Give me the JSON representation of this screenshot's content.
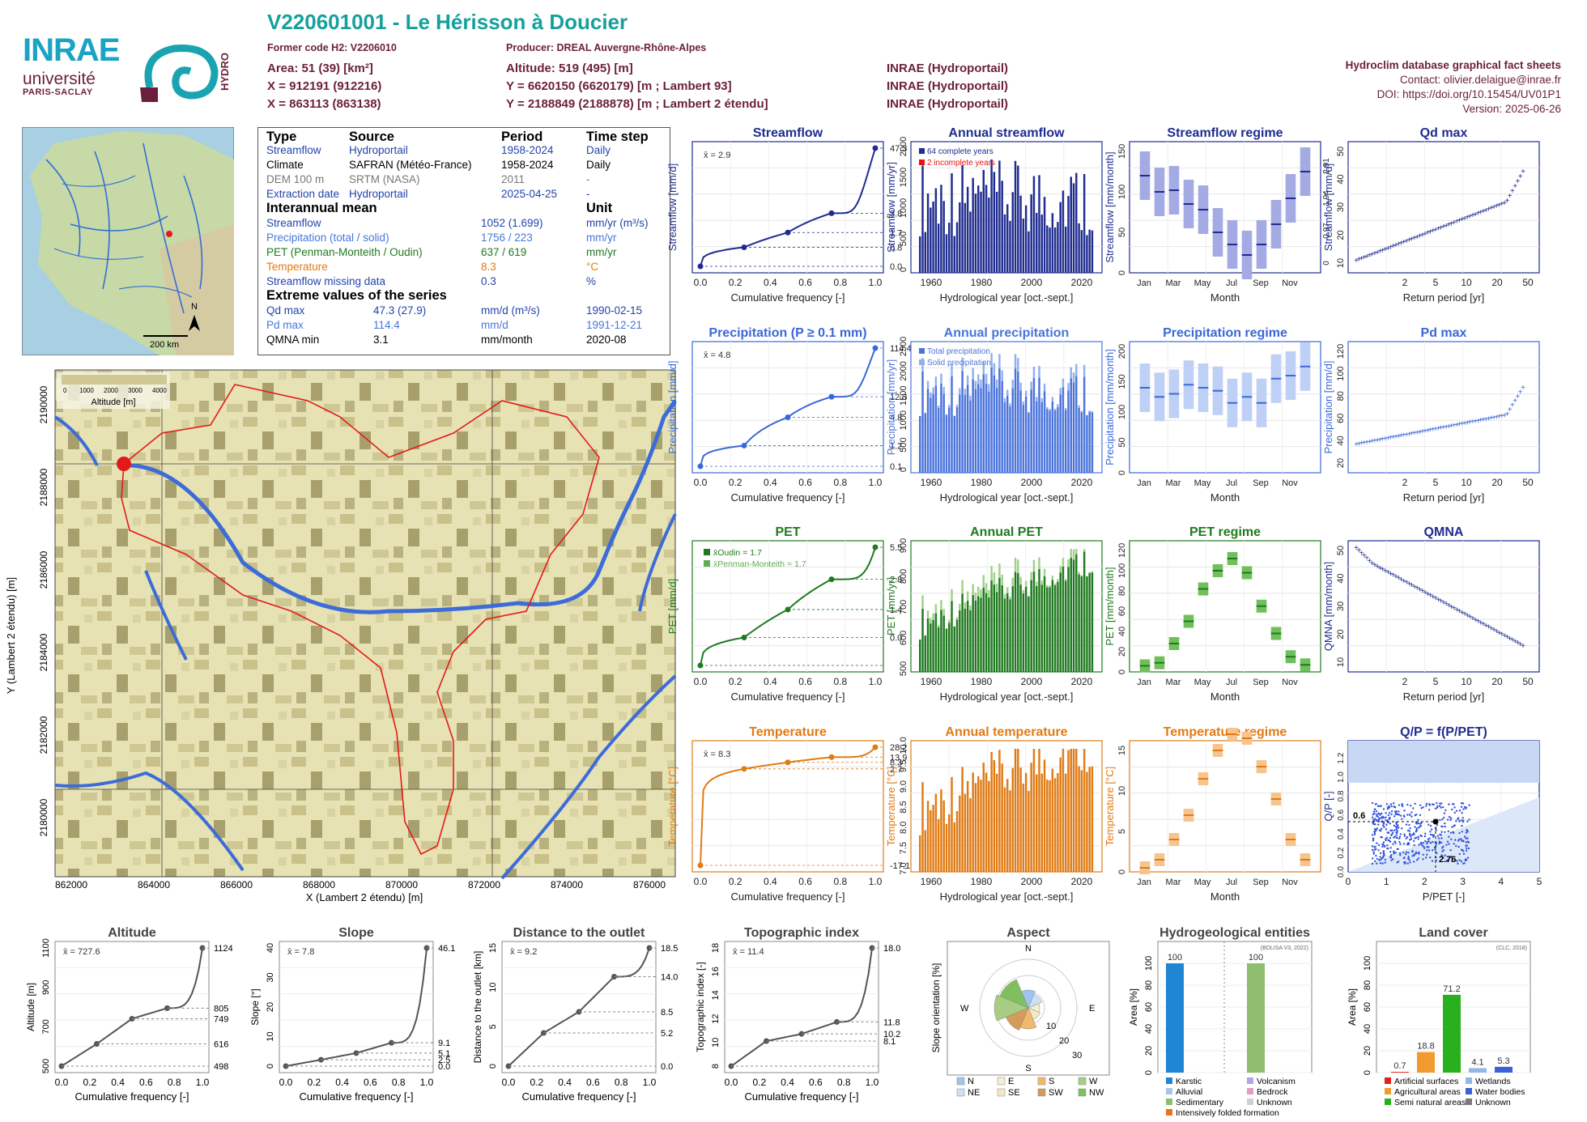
{
  "header": {
    "title": "V220601001 - Le Hérisson à Doucier",
    "former_code": "Former code H2: V2206010",
    "producer": "Producer: DREAL Auvergne-Rhône-Alpes",
    "area": "Area: 51 (39) [km²]",
    "altitude": "Altitude: 519 (495) [m]",
    "x93": "X = 912191 (912216)",
    "y93": "Y = 6620150 (6620179) [m ; Lambert 93]",
    "x2e": "X = 863113 (863138)",
    "y2e": "Y = 2188849 (2188878) [m ; Lambert 2 étendu]",
    "source1": "INRAE (Hydroportail)",
    "source2": "INRAE (Hydroportail)",
    "source3": "INRAE (Hydroportail)",
    "right_title": "Hydroclim database graphical fact sheets",
    "contact": "Contact: olivier.delaigue@inrae.fr",
    "doi": "DOI: https://doi.org/10.15454/UV01P1",
    "version": "Version: 2025-06-26",
    "logo_inrae": "INRAE",
    "logo_univ": "université",
    "logo_ps": "PARIS-SACLAY",
    "logo_hydro": "HYDRO"
  },
  "info": {
    "cols": [
      "Type",
      "Source",
      "Period",
      "Time step"
    ],
    "rows": [
      {
        "type": "Streamflow",
        "source": "Hydroportail",
        "period": "1958-2024",
        "step": "Daily"
      },
      {
        "type": "Climate",
        "source": "SAFRAN (Météo-France)",
        "period": "1958-2024",
        "step": "Daily"
      },
      {
        "type": "DEM 100 m",
        "source": "SRTM (NASA)",
        "period": "2011",
        "step": "-"
      },
      {
        "type": "Extraction date",
        "source": "Hydroportail",
        "period": "2025-04-25",
        "step": "-"
      }
    ],
    "mean_title": "Interannual mean",
    "unit_title": "Unit",
    "means": [
      {
        "label": "Streamflow",
        "value": "1052 (1.699)",
        "unit": "mm/yr (m³/s)"
      },
      {
        "label": "Precipitation (total / solid)",
        "value": "1756 / 223",
        "unit": "mm/yr"
      },
      {
        "label": "PET (Penman-Monteith / Oudin)",
        "value": "637 / 619",
        "unit": "mm/yr"
      },
      {
        "label": "Temperature",
        "value": "8.3",
        "unit": "°C"
      },
      {
        "label": "Streamflow missing data",
        "value": "0.3",
        "unit": "%"
      }
    ],
    "ext_title": "Extreme values of the series",
    "extremes": [
      {
        "label": "Qd max",
        "value": "47.3 (27.9)",
        "unit": "mm/d (m³/s)",
        "date": "1990-02-15"
      },
      {
        "label": "Pd max",
        "value": "114.4",
        "unit": "mm/d",
        "date": "1991-12-21"
      },
      {
        "label": "QMNA min",
        "value": "3.1",
        "unit": "mm/month",
        "date": "2020-08"
      }
    ]
  },
  "map_small": {
    "scale": "200 km",
    "north": "N"
  },
  "map_main": {
    "xlabel": "X (Lambert 2 étendu) [m]",
    "ylabel": "Y (Lambert 2 étendu) [m]",
    "xticks": [
      "862000",
      "864000",
      "866000",
      "868000",
      "870000",
      "872000",
      "874000",
      "876000"
    ],
    "yticks": [
      "2180000",
      "2182000",
      "2184000",
      "2186000",
      "2188000",
      "2190000"
    ],
    "legend_title": "Altitude [m]",
    "legend_ticks": [
      "0",
      "1000",
      "2000",
      "3000",
      "4000"
    ]
  },
  "chart_data": [
    {
      "id": "streamflow_cdf",
      "type": "line",
      "title": "Streamflow",
      "xlabel": "Cumulative frequency [-]",
      "ylabel": "Streamflow [mm/d]",
      "mean_label": "x̄ = 2.9",
      "right_ticks": [
        "47.3",
        "3.8",
        "1.7",
        "0.8",
        "0.0"
      ],
      "x": [
        0,
        0.25,
        0.5,
        0.75,
        1.0
      ],
      "y": [
        0.0,
        0.8,
        1.7,
        3.8,
        47.3
      ]
    },
    {
      "id": "annual_streamflow",
      "type": "bar",
      "title": "Annual streamflow",
      "xlabel": "Hydrological year [oct.-sept.]",
      "ylabel": "Streamflow [mm/yr]",
      "legend": [
        "64 complete years",
        "2 incomplete years"
      ],
      "ylim": [
        0,
        2000
      ],
      "yticks": [
        "0",
        "500",
        "1000",
        "1500",
        "2000"
      ],
      "xticks": [
        "1960",
        "1980",
        "2000",
        "2020"
      ]
    },
    {
      "id": "streamflow_regime",
      "type": "bar",
      "title": "Streamflow regime",
      "xlabel": "Month",
      "ylabel": "Streamflow [mm/month]",
      "xticks": [
        "Jan",
        "Mar",
        "May",
        "Jul",
        "Sep",
        "Nov"
      ],
      "right_ticks": [
        "2.91",
        "1.94",
        "0.97",
        "0"
      ],
      "yticks": [
        "0",
        "50",
        "100",
        "150"
      ],
      "medians": [
        120,
        100,
        102,
        85,
        78,
        50,
        35,
        22,
        35,
        60,
        92,
        125
      ]
    },
    {
      "id": "qd_max",
      "type": "scatter",
      "title": "Qd max",
      "xlabel": "Return period [yr]",
      "ylabel": "Streamflow [mm/d]",
      "xticks": [
        "2",
        "5",
        "10",
        "20",
        "50"
      ],
      "yticks": [
        "10",
        "20",
        "30",
        "40",
        "50"
      ]
    },
    {
      "id": "precip_cdf",
      "type": "line",
      "title": "Precipitation (P ≥ 0.1 mm)",
      "xlabel": "Cumulative frequency [-]",
      "ylabel": "Precipitation [mm/d]",
      "mean_label": "x̄ = 4.8",
      "right_ticks": [
        "114.4",
        "12.3",
        "4.8",
        "1.2",
        "0.1"
      ],
      "x": [
        0,
        0.25,
        0.5,
        0.75,
        1.0
      ],
      "y": [
        0.1,
        1.2,
        4.8,
        12.3,
        114.4
      ]
    },
    {
      "id": "annual_precip",
      "type": "bar",
      "title": "Annual precipitation",
      "xlabel": "Hydrological year [oct.-sept.]",
      "ylabel": "Precipitation [mm/yr]",
      "legend": [
        "Total precipitation",
        "Solid precipitation"
      ],
      "ylim": [
        0,
        2500
      ],
      "yticks": [
        "0",
        "500",
        "1000",
        "1500",
        "2000",
        "2500"
      ],
      "xticks": [
        "1960",
        "1980",
        "2000",
        "2020"
      ]
    },
    {
      "id": "precip_regime",
      "type": "bar",
      "title": "Precipitation regime",
      "xlabel": "Month",
      "ylabel": "Precipitation [mm/month]",
      "xticks": [
        "Jan",
        "Mar",
        "May",
        "Jul",
        "Sep",
        "Nov"
      ],
      "yticks": [
        "0",
        "50",
        "100",
        "150",
        "200"
      ],
      "medians": [
        140,
        125,
        130,
        145,
        140,
        135,
        115,
        125,
        115,
        155,
        160,
        175
      ]
    },
    {
      "id": "pd_max",
      "type": "scatter",
      "title": "Pd max",
      "xlabel": "Return period [yr]",
      "ylabel": "Precipitation [mm/d]",
      "xticks": [
        "2",
        "5",
        "10",
        "20",
        "50"
      ],
      "yticks": [
        "20",
        "40",
        "60",
        "80",
        "100",
        "120"
      ]
    },
    {
      "id": "pet_cdf",
      "type": "line",
      "title": "PET",
      "xlabel": "Cumulative frequency [-]",
      "ylabel": "PET [mm/d]",
      "legend": [
        "x̄Oudin = 1.7",
        "x̄Penman-Monteith = 1.7"
      ],
      "right_ticks": [
        "5.5",
        "2.8",
        "1.4",
        "0.0"
      ],
      "x": [
        0,
        0.25,
        0.5,
        0.75,
        1.0
      ],
      "y": [
        0.0,
        0.6,
        1.4,
        2.8,
        5.5
      ]
    },
    {
      "id": "annual_pet",
      "type": "bar",
      "title": "Annual PET",
      "xlabel": "Hydrological year [oct.-sept.]",
      "ylabel": "PET [mm/yr]",
      "yticks": [
        "500",
        "600",
        "700",
        "800",
        "900"
      ],
      "xticks": [
        "1960",
        "1980",
        "2000",
        "2020"
      ]
    },
    {
      "id": "pet_regime",
      "type": "bar",
      "title": "PET regime",
      "xlabel": "Month",
      "ylabel": "PET [mm/month]",
      "xticks": [
        "Jan",
        "Mar",
        "May",
        "Jul",
        "Sep",
        "Nov"
      ],
      "yticks": [
        "0",
        "20",
        "40",
        "60",
        "80",
        "100",
        "120"
      ],
      "medians": [
        6,
        9,
        28,
        50,
        82,
        100,
        112,
        98,
        65,
        38,
        15,
        7
      ]
    },
    {
      "id": "qmna",
      "type": "scatter",
      "title": "QMNA",
      "xlabel": "Return period [yr]",
      "ylabel": "QMNA [mm/month]",
      "xticks": [
        "2",
        "5",
        "10",
        "20",
        "50"
      ],
      "yticks": [
        "10",
        "20",
        "30",
        "40",
        "50"
      ]
    },
    {
      "id": "temp_cdf",
      "type": "line",
      "title": "Temperature",
      "xlabel": "Cumulative frequency [-]",
      "ylabel": "Temperature [°C]",
      "mean_label": "x̄ = 8.3",
      "right_ticks": [
        "28.2",
        "13.9",
        "8.3",
        "2.7",
        "-17.1"
      ],
      "x": [
        0,
        0.25,
        0.5,
        0.75,
        1.0
      ],
      "y": [
        -17.1,
        2.7,
        8.3,
        13.9,
        28.2
      ]
    },
    {
      "id": "annual_temp",
      "type": "bar",
      "title": "Annual temperature",
      "xlabel": "Hydrological year [oct.-sept.]",
      "ylabel": "Temperature [°C]",
      "yticks": [
        "7.0",
        "7.5",
        "8.0",
        "8.5",
        "9.0",
        "9.5",
        "10.0"
      ],
      "xticks": [
        "1960",
        "1980",
        "2000",
        "2020"
      ]
    },
    {
      "id": "temp_regime",
      "type": "bar",
      "title": "Temperature regime",
      "xlabel": "Month",
      "ylabel": "Temperature [°C]",
      "xticks": [
        "Jan",
        "Mar",
        "May",
        "Jul",
        "Sep",
        "Nov"
      ],
      "yticks": [
        "0",
        "5",
        "10",
        "15"
      ],
      "medians": [
        0.5,
        1.5,
        4,
        7,
        11.5,
        15,
        17,
        16.5,
        13,
        9,
        4,
        1.5
      ]
    },
    {
      "id": "qp_ppet",
      "type": "scatter",
      "title": "Q/P = f(P/PET)",
      "xlabel": "P/PET [-]",
      "ylabel": "Q/P [-]",
      "xticks": [
        "0",
        "1",
        "2",
        "3",
        "4",
        "5"
      ],
      "yticks": [
        "0.0",
        "0.2",
        "0.4",
        "0.6",
        "0.8",
        "1.0",
        "1.2"
      ],
      "annotations": [
        "0.6",
        "2.76"
      ]
    },
    {
      "id": "altitude",
      "type": "line",
      "title": "Altitude",
      "xlabel": "Cumulative frequency [-]",
      "ylabel": "Altitude [m]",
      "mean_label": "x̄ = 727.6",
      "yticks": [
        "500",
        "700",
        "900",
        "1100"
      ],
      "right_ticks": [
        "1124",
        "805",
        "749",
        "616",
        "498"
      ],
      "x": [
        0,
        0.25,
        0.5,
        0.75,
        1.0
      ],
      "y": [
        498,
        616,
        749,
        805,
        1124
      ]
    },
    {
      "id": "slope",
      "type": "line",
      "title": "Slope",
      "xlabel": "Cumulative frequency [-]",
      "ylabel": "Slope [°]",
      "mean_label": "x̄ = 7.8",
      "yticks": [
        "0",
        "10",
        "20",
        "30",
        "40"
      ],
      "right_ticks": [
        "46.1",
        "9.1",
        "5.1",
        "2.5",
        "0.0"
      ],
      "x": [
        0,
        0.25,
        0.5,
        0.75,
        1.0
      ],
      "y": [
        0.0,
        2.5,
        5.1,
        9.1,
        46.1
      ]
    },
    {
      "id": "distance",
      "type": "line",
      "title": "Distance to the outlet",
      "xlabel": "Cumulative frequency [-]",
      "ylabel": "Distance to the outlet [km]",
      "mean_label": "x̄ = 9.2",
      "yticks": [
        "0",
        "5",
        "10",
        "15"
      ],
      "right_ticks": [
        "18.5",
        "14.0",
        "8.5",
        "5.2",
        "0.0"
      ],
      "x": [
        0,
        0.25,
        0.5,
        0.75,
        1.0
      ],
      "y": [
        0.0,
        5.2,
        8.5,
        14.0,
        18.5
      ]
    },
    {
      "id": "topo",
      "type": "line",
      "title": "Topographic index",
      "xlabel": "Cumulative frequency [-]",
      "ylabel": "Topographic index [-]",
      "mean_label": "x̄ = 11.4",
      "yticks": [
        "8",
        "10",
        "12",
        "14",
        "16",
        "18"
      ],
      "right_ticks": [
        "18.0",
        "11.8",
        "10.2",
        "8.1"
      ],
      "x": [
        0,
        0.25,
        0.5,
        0.75,
        1.0
      ],
      "y": [
        8.1,
        10.2,
        10.8,
        11.8,
        18.0
      ]
    },
    {
      "id": "aspect",
      "type": "pie",
      "title": "Aspect",
      "ylabel": "Slope orientation [%]",
      "legend": [
        "N",
        "E",
        "S",
        "W",
        "NE",
        "SE",
        "SW",
        "NW"
      ],
      "ticks": [
        "10",
        "20",
        "30"
      ]
    },
    {
      "id": "hydrogeo",
      "type": "bar",
      "title": "Hydrogeological entities",
      "ylabel": "Area [%]",
      "note": "(BDLISA V3, 2022)",
      "values": [
        100,
        100
      ],
      "labels": [
        "100",
        "100"
      ],
      "legend": [
        "Karstic",
        "Volcanism",
        "Alluvial",
        "Bedrock",
        "Sedimentary",
        "Unknown",
        "Intensively folded formation"
      ],
      "yticks": [
        "0",
        "20",
        "40",
        "60",
        "80",
        "100"
      ]
    },
    {
      "id": "landcover",
      "type": "bar",
      "title": "Land cover",
      "ylabel": "Area [%]",
      "note": "(CLC, 2018)",
      "values": [
        0.7,
        18.8,
        71.2,
        4.1,
        5.3
      ],
      "labels": [
        "0.7",
        "18.8",
        "71.2",
        "4.1",
        "5.3"
      ],
      "legend": [
        "Artificial surfaces",
        "Wetlands",
        "Agricultural areas",
        "Water bodies",
        "Semi natural areas",
        "Unknown"
      ],
      "yticks": [
        "0",
        "20",
        "40",
        "60",
        "80",
        "100"
      ]
    }
  ]
}
